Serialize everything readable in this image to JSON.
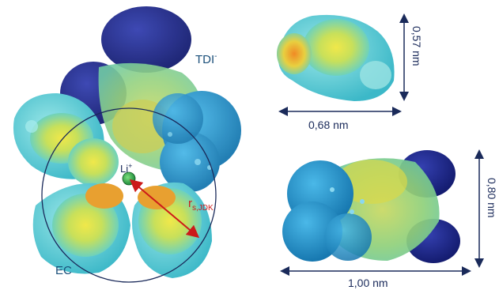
{
  "labels": {
    "tdi": "TDI",
    "tdi_charge": "-",
    "li": "Li",
    "li_charge": "+",
    "r": "r",
    "r_sub": "s,JDK",
    "ec": "EC"
  },
  "dimensions": {
    "ec_height": "0,57 nm",
    "ec_width": "0,68 nm",
    "tdi_height": "0,80 nm",
    "tdi_width": "1,00 nm"
  },
  "colors": {
    "nitrogen_blue": "#1e2a8c",
    "anion_cyan": "#2f9fcf",
    "surface_cyan": "#66d6d6",
    "surface_green": "#8fd07a",
    "surface_yellow": "#e8e04a",
    "surface_orange": "#ee8a25",
    "li_green": "#2ea84a",
    "arrow_red": "#cc1a1a",
    "dim_line": "#1a2a5a",
    "label_blue": "#1a4f7a"
  }
}
